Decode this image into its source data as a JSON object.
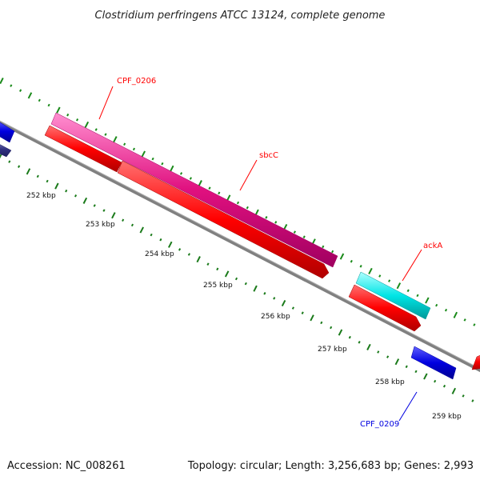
{
  "title": "Clostridium perfringens ATCC 13124, complete genome",
  "footer": {
    "accession": "Accession: NC_008261",
    "summary": "Topology: circular; Length: 3,256,683 bp; Genes: 2,993"
  },
  "scale_labels": [
    "252 kbp",
    "253 kbp",
    "254 kbp",
    "255 kbp",
    "256 kbp",
    "257 kbp",
    "258 kbp",
    "259 kbp"
  ],
  "genes": [
    {
      "name": "CPF_0206",
      "color": "#e0107f"
    },
    {
      "name": "sbcC",
      "color": "#ff0000"
    },
    {
      "name": "ackA",
      "color": "#00e5e5"
    },
    {
      "name": "CPF_0209",
      "color": "#0000e0"
    }
  ],
  "colors": {
    "backbone": "#808080",
    "tick_major": "#1a8a1a",
    "tick_minor": "#1a7a1a",
    "forward_cds": "#e0107f",
    "reverse_cds": "#ff0000",
    "rna_cds": "#00e5e5",
    "other_cds": "#0000e0"
  }
}
